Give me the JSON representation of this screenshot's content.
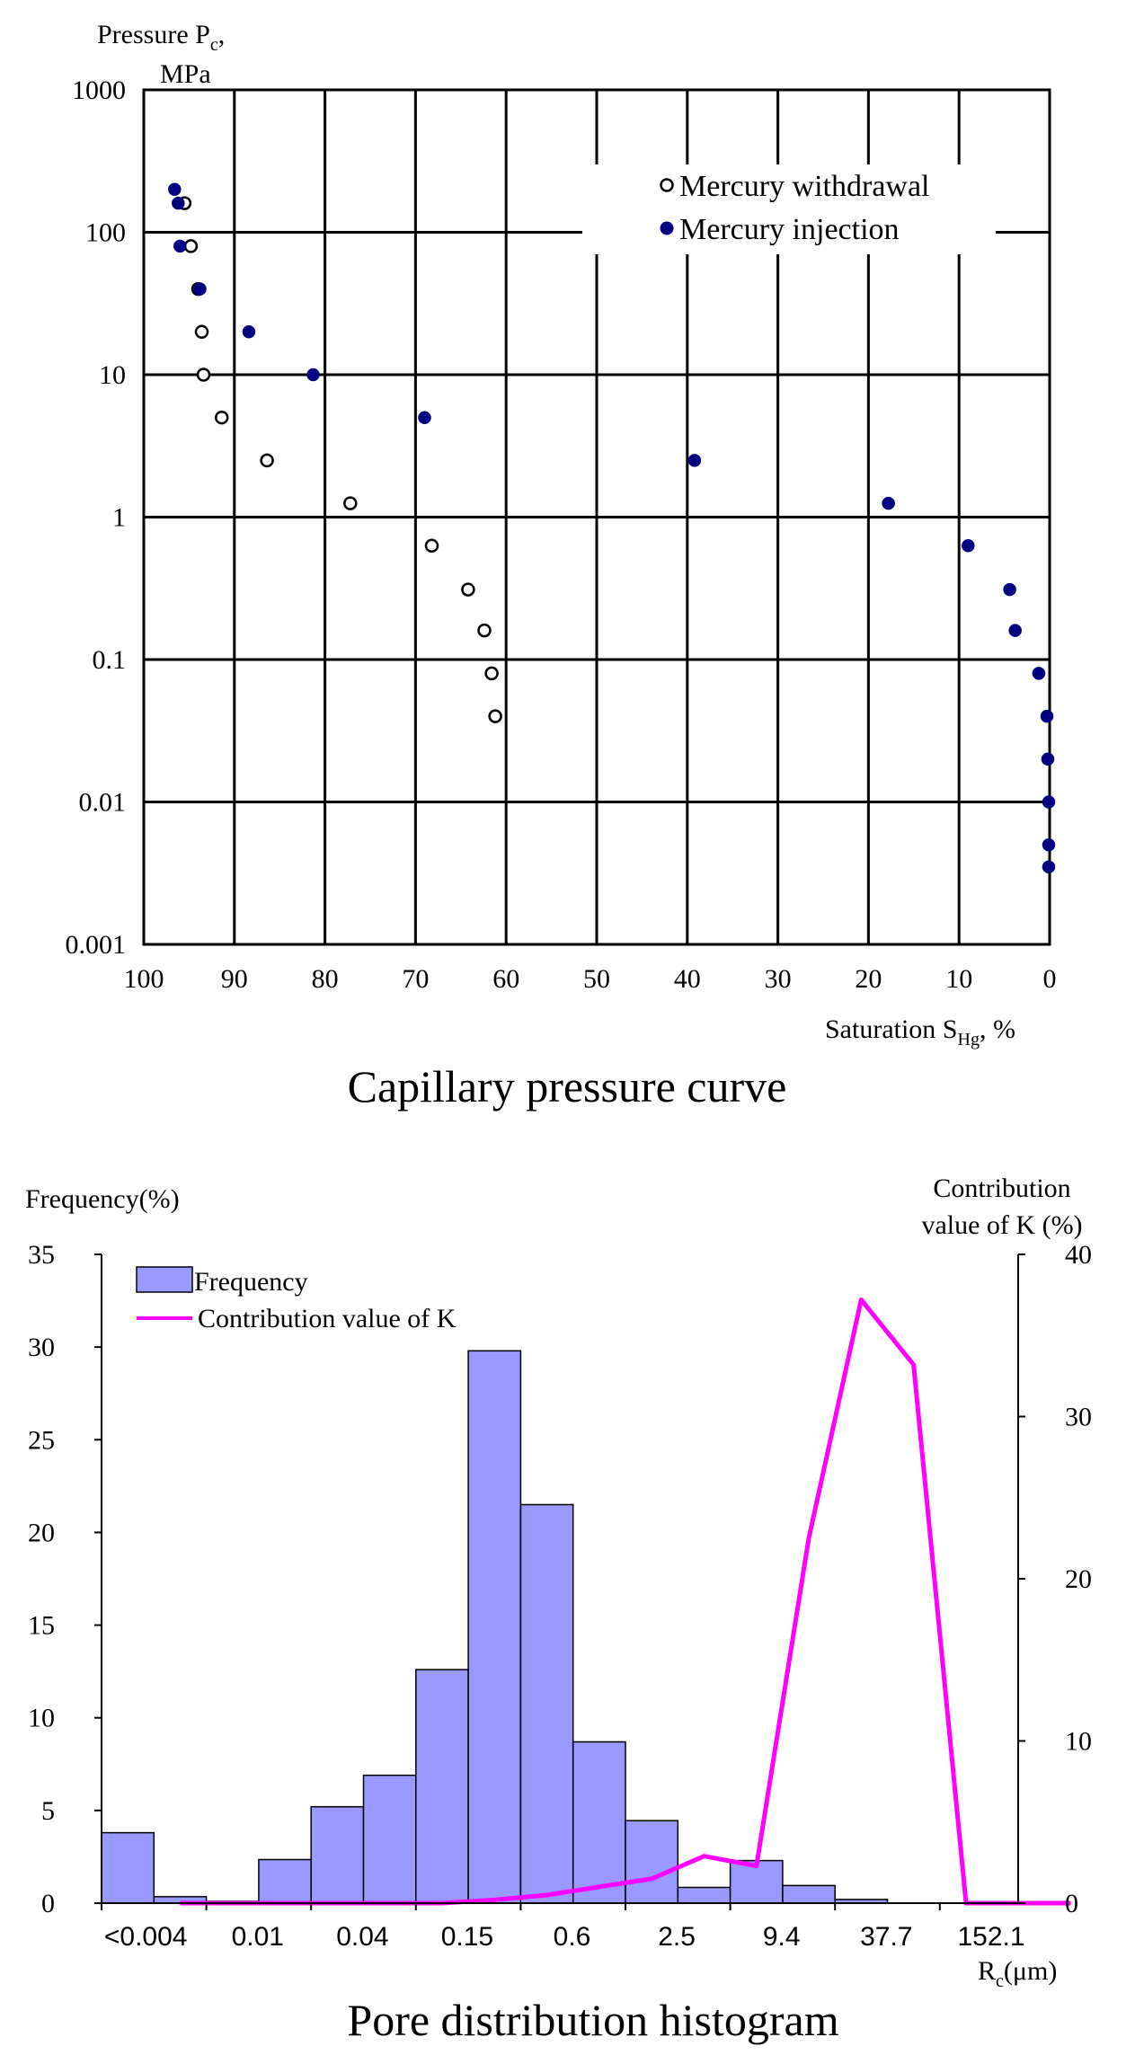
{
  "chart_data": [
    {
      "type": "scatter",
      "title": "Capillary pressure curve",
      "ylabel_line1": "Pressure P",
      "ylabel_sub": "c",
      "ylabel_suffix": ",",
      "ylabel_line2": "MPa",
      "xlabel_main": "Saturation  S",
      "xlabel_sub": "Hg",
      "xlabel_suffix": ",  %",
      "x_reversed": true,
      "xlim": [
        0,
        100
      ],
      "ylim": [
        0.001,
        1000
      ],
      "yscale": "log",
      "xticks": [
        "100",
        "90",
        "80",
        "70",
        "60",
        "50",
        "40",
        "30",
        "20",
        "10",
        "0"
      ],
      "yticks": [
        "0.001",
        "0.01",
        "0.1",
        "1",
        "10",
        "100",
        "1000"
      ],
      "grid": true,
      "legend_position": "top-right",
      "series": [
        {
          "name": "Mercury withdrawal",
          "marker": "open-circle",
          "x": [
            95.5,
            94.8,
            94.0,
            93.6,
            93.4,
            91.4,
            86.4,
            77.2,
            68.2,
            64.2,
            62.4,
            61.6,
            61.2
          ],
          "y": [
            160,
            80,
            40,
            20,
            10,
            5,
            2.5,
            1.25,
            0.63,
            0.31,
            0.16,
            0.08,
            0.04
          ]
        },
        {
          "name": "Mercury injection",
          "marker": "filled-circle",
          "x": [
            96.6,
            96.2,
            96.0,
            93.8,
            88.4,
            81.3,
            69.0,
            39.2,
            17.8,
            9.0,
            4.4,
            3.8,
            1.2,
            0.3,
            0.2,
            0.1,
            0.1,
            0.1
          ],
          "y": [
            200,
            160,
            80,
            40,
            20,
            10,
            5,
            2.5,
            1.25,
            0.63,
            0.31,
            0.16,
            0.08,
            0.04,
            0.02,
            0.01,
            0.005,
            0.0035
          ]
        }
      ]
    },
    {
      "type": "bar",
      "title": "Pore distribution histogram",
      "ylabel": "Frequency(%)",
      "y2label_line1": "Contribution",
      "y2label_line2": "value of K (%)",
      "xlabel_main": "R",
      "xlabel_sub": "c",
      "xlabel_suffix": "(μm)",
      "ylim": [
        0,
        35
      ],
      "y2lim": [
        0,
        40
      ],
      "yticks": [
        "0",
        "5",
        "10",
        "15",
        "20",
        "25",
        "30",
        "35"
      ],
      "y2ticks": [
        "0",
        "10",
        "20",
        "30",
        "40"
      ],
      "xtick_labels": [
        "<0.004",
        "0.01",
        "0.04",
        "0.15",
        "0.6",
        "2.5",
        "9.4",
        "37.7",
        "152.1"
      ],
      "bar_color": "#9999ff",
      "line_color": "#ff00ff",
      "legend_position": "top-left",
      "series": [
        {
          "name": "Frequency",
          "type": "bar",
          "values": [
            3.8,
            0.35,
            0.1,
            2.35,
            5.2,
            6.9,
            12.6,
            29.8,
            21.5,
            8.7,
            4.45,
            0.85,
            2.3,
            0.95,
            0.2,
            0,
            0,
            0
          ]
        },
        {
          "name": "Contribution value of K",
          "type": "line",
          "axis": "right",
          "values": [
            0,
            0,
            0,
            0,
            0,
            0,
            0.2,
            0.5,
            1.0,
            1.5,
            2.9,
            2.3,
            22.5,
            37.2,
            33.2,
            0,
            0,
            0
          ]
        }
      ]
    }
  ]
}
